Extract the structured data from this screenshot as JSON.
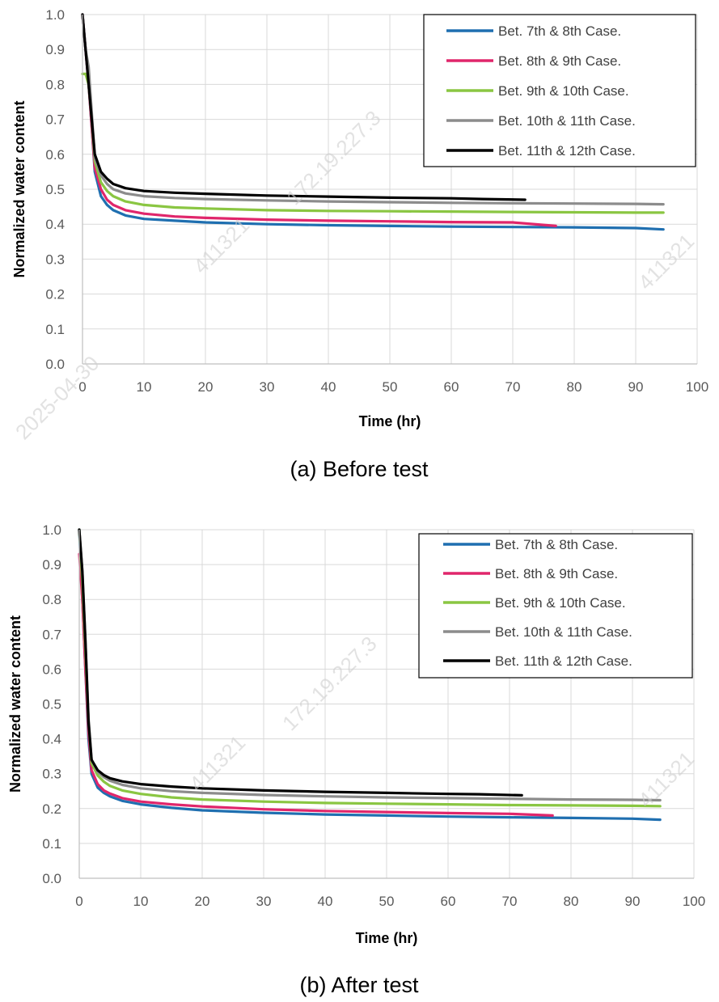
{
  "colors": {
    "blue": "#1f6fb0",
    "pink": "#e0266b",
    "green": "#8ac642",
    "gray": "#8c8c8c",
    "black": "#000000",
    "grid": "#d9d9d9",
    "axis": "#bfbfbf"
  },
  "watermarks": [
    "2025-04-30",
    "172.19.227.3",
    "411321"
  ],
  "chart_data": [
    {
      "type": "line",
      "caption": "(a) Before test",
      "xlabel": "Time (hr)",
      "ylabel": "Normalized water content",
      "xlim": [
        0,
        100
      ],
      "ylim": [
        0,
        1
      ],
      "xticks": [
        "0",
        "10",
        "20",
        "30",
        "40",
        "50",
        "60",
        "70",
        "80",
        "90",
        "100"
      ],
      "yticks": [
        "0.0",
        "0.1",
        "0.2",
        "0.3",
        "0.4",
        "0.5",
        "0.6",
        "0.7",
        "0.8",
        "0.9",
        "1.0"
      ],
      "grid": true,
      "legend_position": "top-right",
      "series": [
        {
          "name": "Bet. 7th & 8th Case.",
          "color": "#1f6fb0",
          "x": [
            0,
            0.5,
            1,
            1.5,
            2,
            3,
            4,
            5,
            7,
            10,
            15,
            20,
            30,
            40,
            50,
            60,
            70,
            80,
            90,
            94.5
          ],
          "y": [
            1.0,
            0.9,
            0.8,
            0.68,
            0.55,
            0.48,
            0.455,
            0.44,
            0.425,
            0.415,
            0.41,
            0.405,
            0.4,
            0.397,
            0.395,
            0.393,
            0.392,
            0.391,
            0.389,
            0.385
          ]
        },
        {
          "name": "Bet. 8th & 9th Case.",
          "color": "#e0266b",
          "x": [
            0,
            0.5,
            1,
            1.5,
            2,
            3,
            4,
            5,
            7,
            10,
            15,
            20,
            30,
            40,
            50,
            60,
            70,
            77
          ],
          "y": [
            1.0,
            0.9,
            0.8,
            0.68,
            0.56,
            0.5,
            0.47,
            0.455,
            0.44,
            0.43,
            0.422,
            0.418,
            0.413,
            0.41,
            0.408,
            0.406,
            0.405,
            0.395
          ]
        },
        {
          "name": "Bet. 9th & 10th Case.",
          "color": "#8ac642",
          "x": [
            0,
            0.5,
            1,
            1.5,
            2,
            3,
            4,
            5,
            7,
            10,
            15,
            20,
            30,
            40,
            50,
            60,
            70,
            80,
            90,
            94.5
          ],
          "y": [
            0.83,
            0.83,
            0.8,
            0.7,
            0.58,
            0.52,
            0.495,
            0.48,
            0.465,
            0.455,
            0.448,
            0.445,
            0.44,
            0.438,
            0.437,
            0.436,
            0.435,
            0.434,
            0.433,
            0.433
          ]
        },
        {
          "name": "Bet. 10th & 11th Case.",
          "color": "#8c8c8c",
          "x": [
            0,
            0.5,
            1,
            1.5,
            2,
            3,
            4,
            5,
            7,
            10,
            15,
            20,
            30,
            40,
            50,
            60,
            70,
            80,
            90,
            94.5
          ],
          "y": [
            1.0,
            0.9,
            0.85,
            0.72,
            0.59,
            0.54,
            0.515,
            0.5,
            0.488,
            0.48,
            0.475,
            0.472,
            0.468,
            0.465,
            0.463,
            0.461,
            0.46,
            0.459,
            0.458,
            0.457
          ]
        },
        {
          "name": "Bet. 11th & 12th Case.",
          "color": "#000000",
          "x": [
            0,
            0.5,
            1,
            1.5,
            2,
            3,
            4,
            5,
            7,
            10,
            15,
            20,
            30,
            40,
            50,
            60,
            65,
            72
          ],
          "y": [
            1.0,
            0.9,
            0.8,
            0.7,
            0.6,
            0.55,
            0.53,
            0.515,
            0.503,
            0.495,
            0.49,
            0.487,
            0.482,
            0.479,
            0.476,
            0.474,
            0.472,
            0.47
          ]
        }
      ]
    },
    {
      "type": "line",
      "caption": "(b) After test",
      "xlabel": "Time (hr)",
      "ylabel": "Normalized water content",
      "xlim": [
        0,
        100
      ],
      "ylim": [
        0,
        1
      ],
      "xticks": [
        "0",
        "10",
        "20",
        "30",
        "40",
        "50",
        "60",
        "70",
        "80",
        "90",
        "100"
      ],
      "yticks": [
        "0.0",
        "0.1",
        "0.2",
        "0.3",
        "0.4",
        "0.5",
        "0.6",
        "0.7",
        "0.8",
        "0.9",
        "1.0"
      ],
      "grid": true,
      "legend_position": "top-right",
      "series": [
        {
          "name": "Bet. 7th & 8th Case.",
          "color": "#1f6fb0",
          "x": [
            0,
            0.5,
            1,
            1.5,
            2,
            3,
            4,
            5,
            7,
            10,
            15,
            20,
            30,
            40,
            50,
            60,
            70,
            80,
            90,
            94.5
          ],
          "y": [
            1.0,
            0.8,
            0.6,
            0.4,
            0.3,
            0.26,
            0.245,
            0.235,
            0.222,
            0.212,
            0.202,
            0.195,
            0.188,
            0.183,
            0.18,
            0.177,
            0.175,
            0.173,
            0.171,
            0.168
          ]
        },
        {
          "name": "Bet. 8th & 9th Case.",
          "color": "#e0266b",
          "x": [
            0,
            0.5,
            1,
            1.5,
            2,
            3,
            4,
            5,
            7,
            10,
            15,
            20,
            30,
            40,
            50,
            60,
            70,
            77
          ],
          "y": [
            0.93,
            0.8,
            0.6,
            0.42,
            0.31,
            0.27,
            0.252,
            0.243,
            0.23,
            0.22,
            0.212,
            0.206,
            0.198,
            0.193,
            0.19,
            0.187,
            0.185,
            0.18
          ]
        },
        {
          "name": "Bet. 9th & 10th Case.",
          "color": "#8ac642",
          "x": [
            0,
            0.5,
            1,
            1.5,
            2,
            3,
            4,
            5,
            7,
            10,
            15,
            20,
            30,
            40,
            50,
            60,
            70,
            80,
            90,
            94.5
          ],
          "y": [
            1.0,
            0.85,
            0.65,
            0.45,
            0.33,
            0.295,
            0.277,
            0.265,
            0.252,
            0.242,
            0.232,
            0.226,
            0.22,
            0.216,
            0.214,
            0.212,
            0.21,
            0.209,
            0.208,
            0.207
          ]
        },
        {
          "name": "Bet. 10th & 11th Case.",
          "color": "#8c8c8c",
          "x": [
            0,
            0.5,
            1,
            1.5,
            2,
            3,
            4,
            5,
            7,
            10,
            15,
            20,
            30,
            40,
            50,
            60,
            70,
            80,
            90,
            94.5
          ],
          "y": [
            1.0,
            0.88,
            0.68,
            0.46,
            0.34,
            0.305,
            0.29,
            0.28,
            0.268,
            0.258,
            0.25,
            0.245,
            0.239,
            0.235,
            0.232,
            0.23,
            0.228,
            0.226,
            0.225,
            0.224
          ]
        },
        {
          "name": "Bet. 11th & 12th Case.",
          "color": "#000000",
          "x": [
            0,
            0.5,
            1,
            1.5,
            2,
            3,
            4,
            5,
            7,
            10,
            15,
            20,
            30,
            40,
            50,
            60,
            65,
            72
          ],
          "y": [
            1.0,
            0.88,
            0.68,
            0.45,
            0.34,
            0.31,
            0.296,
            0.287,
            0.278,
            0.27,
            0.263,
            0.258,
            0.252,
            0.248,
            0.245,
            0.242,
            0.241,
            0.238
          ]
        }
      ]
    }
  ]
}
